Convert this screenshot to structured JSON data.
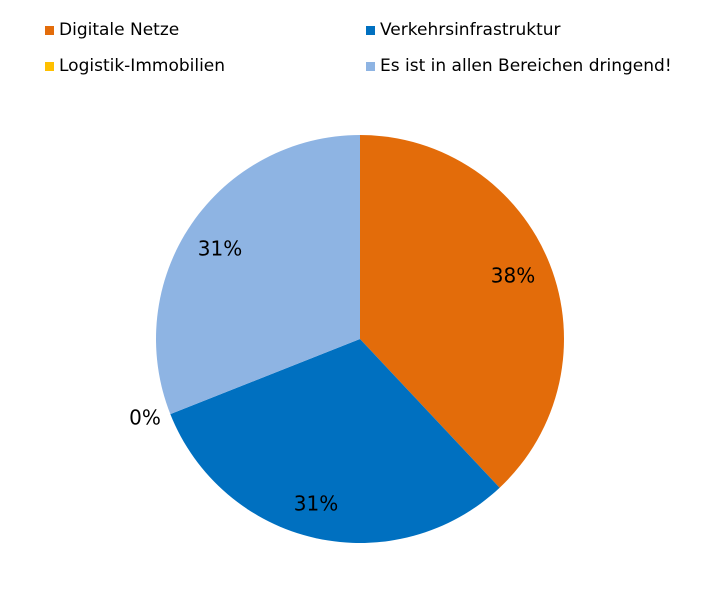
{
  "chart_data": {
    "type": "pie",
    "title": "",
    "start_angle_deg": 0,
    "direction": "clockwise",
    "legend_position": "top",
    "slices": [
      {
        "label": "Digitale Netze",
        "value": 38,
        "data_label": "38%",
        "color": "#E36C0A"
      },
      {
        "label": "Verkehrsinfrastruktur",
        "value": 31,
        "data_label": "31%",
        "color": "#0070C0"
      },
      {
        "label": "Logistik-Immobilien",
        "value": 0,
        "data_label": "0%",
        "color": "#FFC000"
      },
      {
        "label": "Es ist in allen Bereichen dringend!",
        "value": 31,
        "data_label": "31%",
        "color": "#8EB4E3"
      }
    ]
  }
}
